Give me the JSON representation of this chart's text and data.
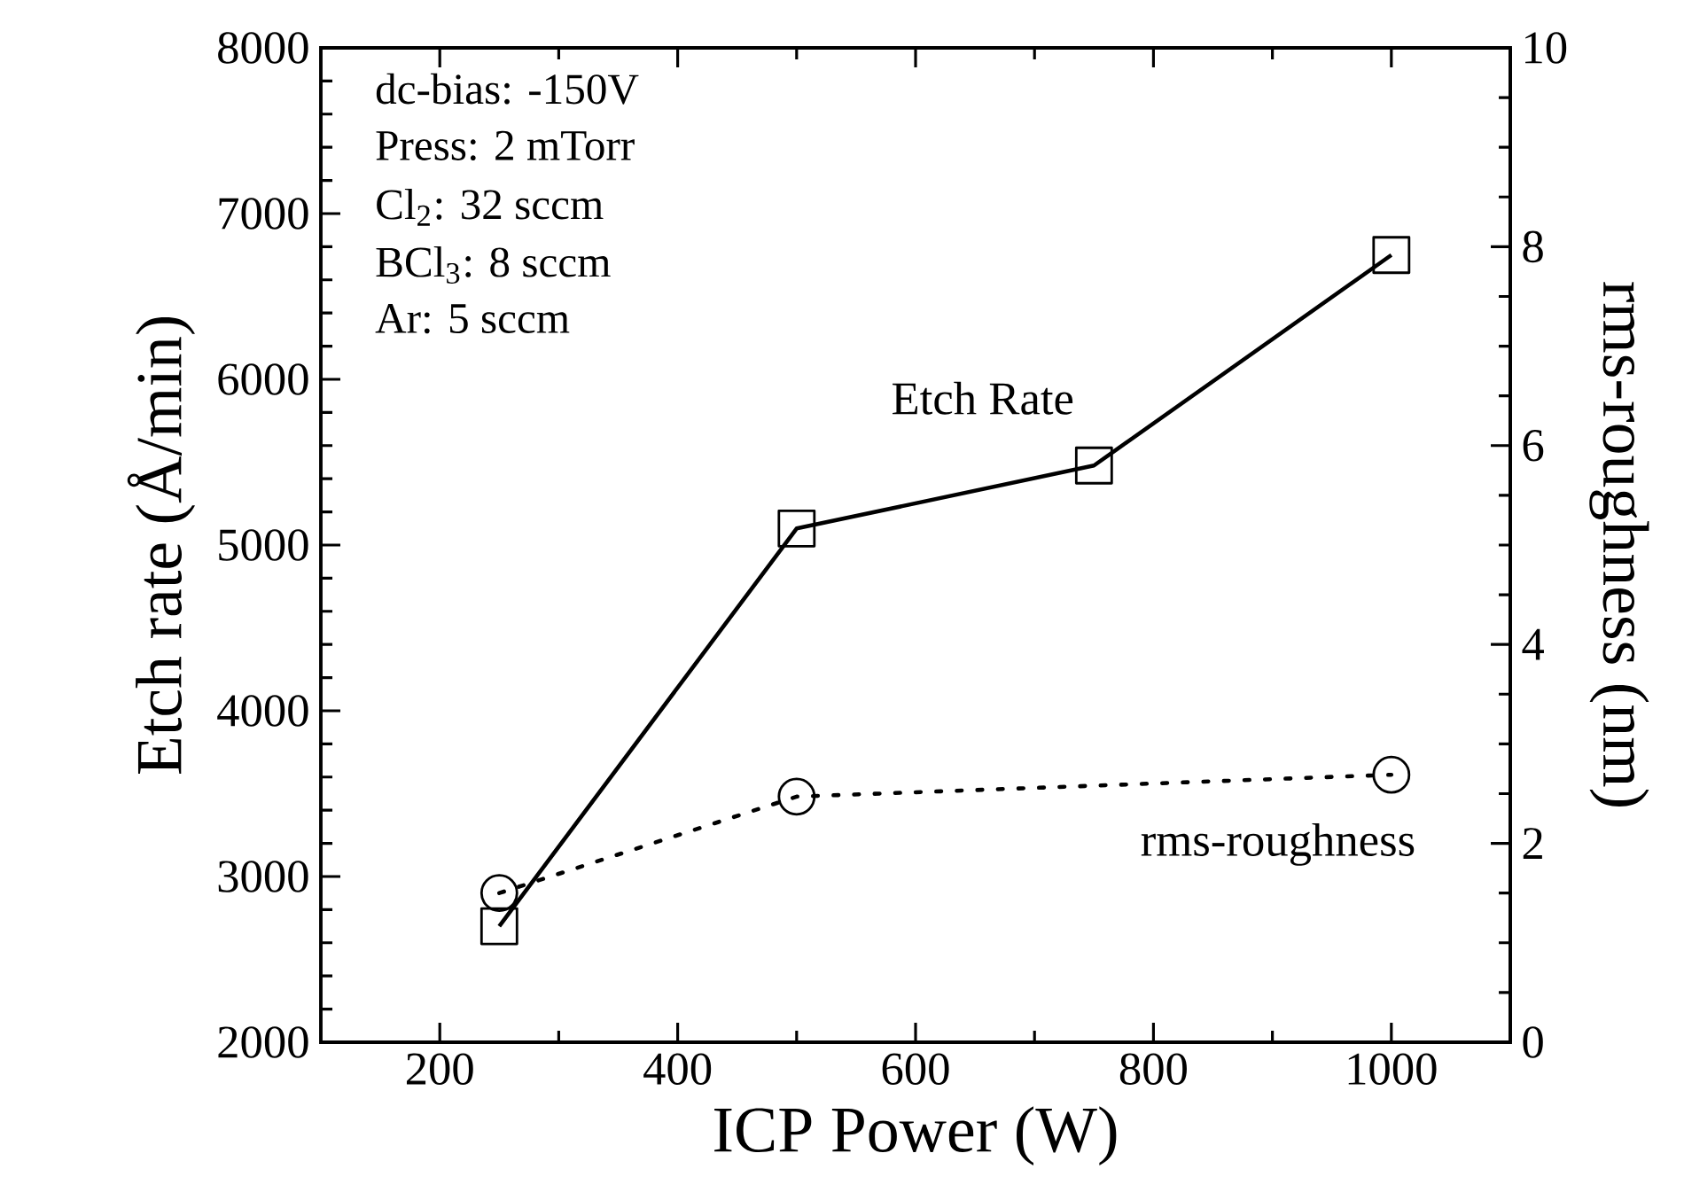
{
  "chart_data": {
    "type": "line",
    "xlabel": "ICP Power (W)",
    "ylabel": "Etch rate (Å/min)",
    "y2label": "rms-roughness (nm)",
    "x": [
      250,
      500,
      750,
      1000
    ],
    "xlim": [
      100,
      1100
    ],
    "xticks": [
      200,
      400,
      600,
      800,
      1000
    ],
    "ylim": [
      2000,
      8000
    ],
    "yticks": [
      2000,
      3000,
      4000,
      5000,
      6000,
      7000,
      8000
    ],
    "y2lim": [
      0,
      10
    ],
    "y2ticks": [
      0,
      2,
      4,
      6,
      8,
      10
    ],
    "series": [
      {
        "name": "Etch Rate",
        "color": "#000000",
        "values": [
          2700,
          5100,
          5480,
          6750
        ],
        "marker": "square",
        "line_style": "solid"
      },
      {
        "name": "rms-roughness",
        "color": "#000000",
        "x": [
          250,
          500,
          1000
        ],
        "values": [
          1.5,
          2.47,
          2.69
        ],
        "marker": "circle",
        "line_style": "dotted",
        "axis": "y2"
      }
    ],
    "annotations": [
      "dc-bias: -150V",
      "Press: 2 mTorr",
      "Cl$_{2}$: 32 sccm",
      "BCl$_{3}$: 8 sccm",
      "Ar: 5 sccm"
    ]
  }
}
